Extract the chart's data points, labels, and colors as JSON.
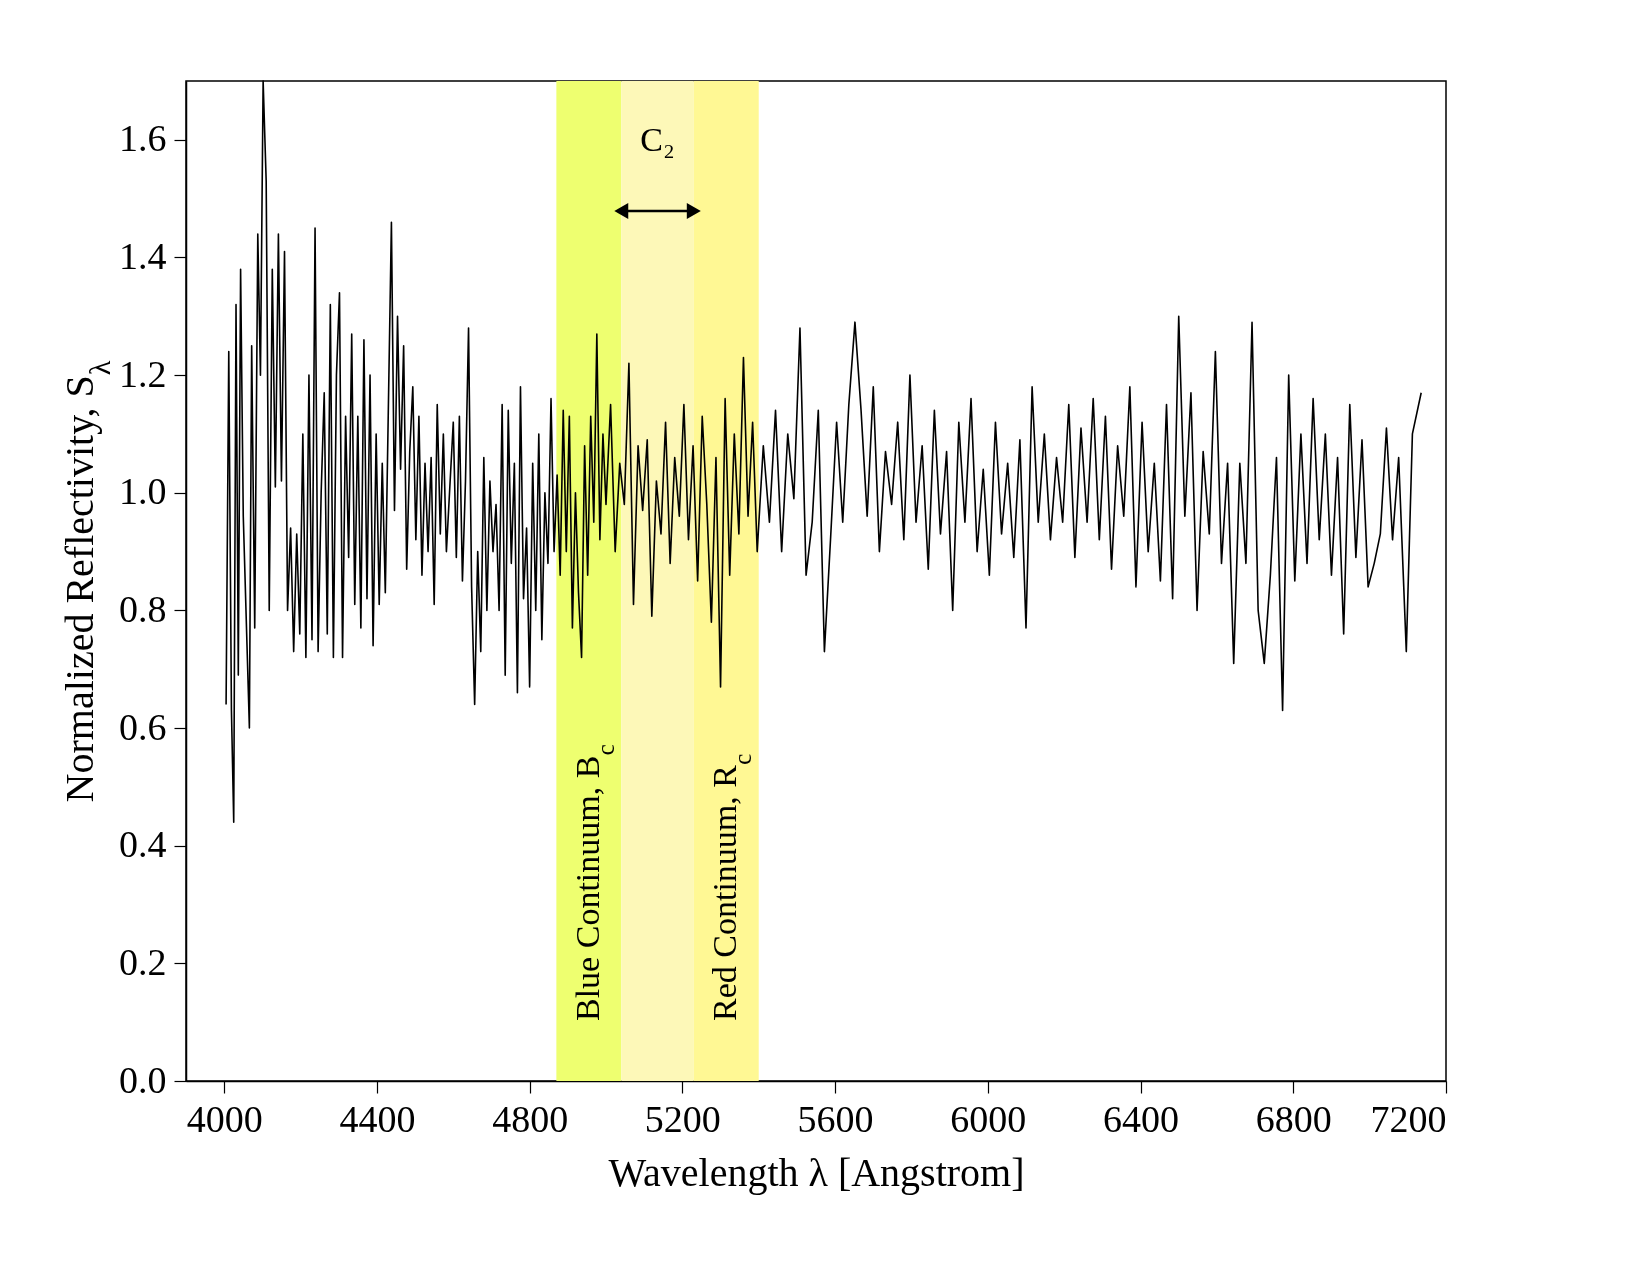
{
  "chart_data": {
    "type": "line",
    "xlabel": "Wavelength λ [Angstrom]",
    "ylabel": "Normalized Reflectivity, S$_{λ}$",
    "xlim": [
      3900,
      7200
    ],
    "xticks": [
      4000,
      4400,
      4800,
      5200,
      5600,
      6000,
      6400,
      6800,
      7200
    ],
    "ylim": [
      0,
      1.7
    ],
    "yticks": [
      {
        "value": 0,
        "label": "0.0"
      },
      0.2,
      0.4,
      0.6,
      0.8,
      {
        "value": 1,
        "label": "1.0"
      },
      1.2,
      1.4,
      1.6
    ],
    "grid": false,
    "marker": "none",
    "line_style": "solid",
    "bands": [
      {
        "axis": "x",
        "from": 4870,
        "to": 5040,
        "label": "Blue Continuum, B$_{c}$",
        "color": "#eeff70"
      },
      {
        "axis": "x",
        "from": 5040,
        "to": 5230,
        "color": "#fdf8b8"
      },
      {
        "axis": "x",
        "from": 5230,
        "to": 5400,
        "label": "Red Continuum, R$_{c}$",
        "color": "#fff894"
      }
    ],
    "annotations": [
      "C₂"
    ],
    "series": [
      {
        "color": "#000000",
        "x": [
          4005,
          4012,
          4019,
          4025,
          4031,
          4037,
          4043,
          4050,
          4066,
          4072,
          4080,
          4088,
          4095,
          4102,
          4110,
          4118,
          4126,
          4134,
          4142,
          4150,
          4158,
          4166,
          4174,
          4182,
          4190,
          4198,
          4206,
          4214,
          4222,
          4230,
          4238,
          4246,
          4254,
          4262,
          4270,
          4278,
          4286,
          4294,
          4302,
          4310,
          4318,
          4326,
          4334,
          4342,
          4350,
          4358,
          4366,
          4374,
          4382,
          4390,
          4398,
          4406,
          4414,
          4422,
          4438,
          4446,
          4454,
          4462,
          4470,
          4478,
          4486,
          4494,
          4502,
          4510,
          4518,
          4526,
          4534,
          4542,
          4550,
          4558,
          4566,
          4574,
          4582,
          4600,
          4608,
          4616,
          4624,
          4632,
          4640,
          4648,
          4656,
          4664,
          4672,
          4680,
          4688,
          4696,
          4704,
          4712,
          4720,
          4728,
          4736,
          4744,
          4752,
          4760,
          4768,
          4776,
          4784,
          4792,
          4800,
          4808,
          4816,
          4824,
          4832,
          4840,
          4848,
          4856,
          4864,
          4872,
          4880,
          4888,
          4896,
          4904,
          4912,
          4920,
          4928,
          4936,
          4944,
          4952,
          4960,
          4968,
          4976,
          4984,
          4992,
          5000,
          5012,
          5024,
          5036,
          5048,
          5060,
          5072,
          5084,
          5096,
          5108,
          5120,
          5132,
          5144,
          5156,
          5168,
          5180,
          5192,
          5204,
          5216,
          5228,
          5240,
          5252,
          5264,
          5276,
          5288,
          5300,
          5312,
          5324,
          5336,
          5348,
          5360,
          5372,
          5384,
          5396,
          5412,
          5428,
          5444,
          5460,
          5476,
          5492,
          5508,
          5524,
          5540,
          5556,
          5572,
          5588,
          5604,
          5620,
          5636,
          5652,
          5668,
          5684,
          5700,
          5716,
          5732,
          5748,
          5764,
          5780,
          5796,
          5812,
          5828,
          5844,
          5860,
          5876,
          5892,
          5908,
          5924,
          5940,
          5956,
          5972,
          5988,
          6004,
          6020,
          6036,
          6052,
          6068,
          6084,
          6100,
          6116,
          6132,
          6148,
          6164,
          6180,
          6196,
          6212,
          6228,
          6244,
          6260,
          6276,
          6292,
          6308,
          6324,
          6340,
          6356,
          6372,
          6388,
          6404,
          6420,
          6436,
          6452,
          6468,
          6484,
          6500,
          6516,
          6532,
          6548,
          6564,
          6580,
          6596,
          6612,
          6628,
          6644,
          6660,
          6676,
          6692,
          6708,
          6724,
          6740,
          6756,
          6772,
          6788,
          6804,
          6820,
          6836,
          6852,
          6868,
          6884,
          6900,
          6916,
          6932,
          6948,
          6964,
          6980,
          6996,
          7012,
          7028,
          7044,
          7060,
          7076,
          7096,
          7112,
          7135
        ],
        "values": [
          0.64,
          1.24,
          0.63,
          0.44,
          1.32,
          0.69,
          1.38,
          0.96,
          0.6,
          1.25,
          0.77,
          1.44,
          1.2,
          1.7,
          1.53,
          0.8,
          1.38,
          1.01,
          1.44,
          1.02,
          1.41,
          0.8,
          0.94,
          0.73,
          0.93,
          0.76,
          1.1,
          0.72,
          1.2,
          0.75,
          1.45,
          0.73,
          1.0,
          1.17,
          0.76,
          1.32,
          0.72,
          1.2,
          1.34,
          0.72,
          1.13,
          0.89,
          1.27,
          0.81,
          1.13,
          0.77,
          1.26,
          0.82,
          1.2,
          0.74,
          1.1,
          0.81,
          1.05,
          0.83,
          1.46,
          0.97,
          1.3,
          1.04,
          1.25,
          0.87,
          1.07,
          1.18,
          0.92,
          1.13,
          0.86,
          1.05,
          0.9,
          1.06,
          0.81,
          1.15,
          0.93,
          1.1,
          0.9,
          1.12,
          0.89,
          1.13,
          0.85,
          1.02,
          1.28,
          0.84,
          0.64,
          0.9,
          0.73,
          1.06,
          0.8,
          1.02,
          0.9,
          0.98,
          0.8,
          1.15,
          0.69,
          1.14,
          0.88,
          1.05,
          0.66,
          1.18,
          0.82,
          0.94,
          0.67,
          1.05,
          0.8,
          1.1,
          0.75,
          1.0,
          0.88,
          1.16,
          0.9,
          1.03,
          0.86,
          1.14,
          0.9,
          1.13,
          0.77,
          1.0,
          0.83,
          0.72,
          1.08,
          0.86,
          1.13,
          0.95,
          1.27,
          0.92,
          1.1,
          0.98,
          1.15,
          0.9,
          1.05,
          0.98,
          1.22,
          0.81,
          1.08,
          0.97,
          1.09,
          0.79,
          1.02,
          0.93,
          1.12,
          0.88,
          1.06,
          0.96,
          1.15,
          0.92,
          1.08,
          0.85,
          1.13,
          0.98,
          0.78,
          1.06,
          0.67,
          1.16,
          0.86,
          1.1,
          0.93,
          1.23,
          0.96,
          1.12,
          0.9,
          1.08,
          0.95,
          1.14,
          0.9,
          1.1,
          0.99,
          1.28,
          0.86,
          0.95,
          1.14,
          0.73,
          0.92,
          1.12,
          0.95,
          1.15,
          1.29,
          1.14,
          0.96,
          1.18,
          0.9,
          1.07,
          0.98,
          1.12,
          0.92,
          1.2,
          0.95,
          1.08,
          0.87,
          1.14,
          0.93,
          1.07,
          0.8,
          1.12,
          0.95,
          1.16,
          0.9,
          1.04,
          0.86,
          1.12,
          0.93,
          1.05,
          0.89,
          1.09,
          0.77,
          1.18,
          0.95,
          1.1,
          0.92,
          1.06,
          0.95,
          1.15,
          0.89,
          1.11,
          0.95,
          1.16,
          0.92,
          1.13,
          0.87,
          1.08,
          0.96,
          1.18,
          0.84,
          1.12,
          0.9,
          1.05,
          0.85,
          1.15,
          0.82,
          1.3,
          0.96,
          1.17,
          0.8,
          1.07,
          0.93,
          1.24,
          0.88,
          1.05,
          0.71,
          1.05,
          0.88,
          1.29,
          0.8,
          0.71,
          0.86,
          1.06,
          0.63,
          1.2,
          0.85,
          1.1,
          0.88,
          1.16,
          0.92,
          1.1,
          0.86,
          1.06,
          0.76,
          1.15,
          0.89,
          1.09,
          0.84,
          0.88,
          0.93,
          1.11,
          0.92,
          1.06,
          0.73,
          1.1,
          1.17
        ]
      }
    ]
  }
}
